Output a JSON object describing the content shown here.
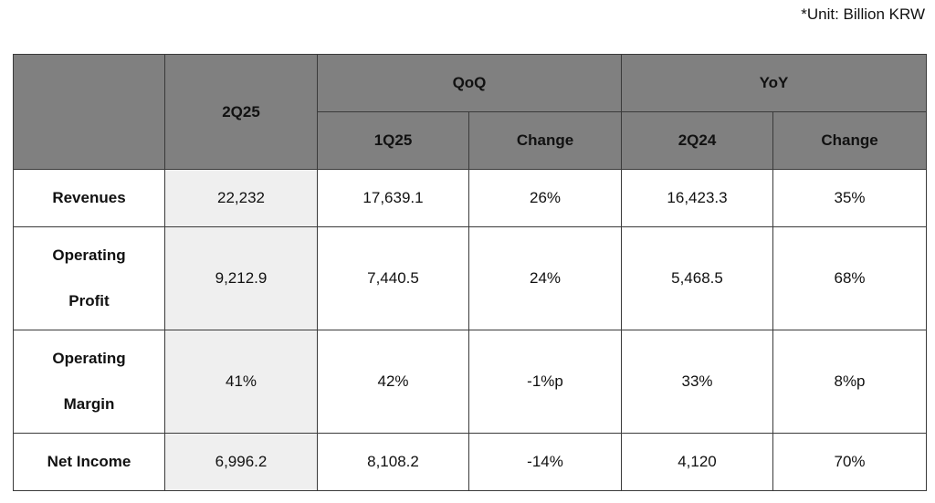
{
  "unit_note": "*Unit: Billion KRW",
  "header": {
    "current": "2Q25",
    "qoq": "QoQ",
    "yoy": "YoY",
    "qoq_period": "1Q25",
    "qoq_change": "Change",
    "yoy_period": "2Q24",
    "yoy_change": "Change"
  },
  "rows": [
    {
      "label_line1": "Revenues",
      "label_line2": "",
      "current": "22,232",
      "qoq_value": "17,639.1",
      "qoq_change": "26%",
      "yoy_value": "16,423.3",
      "yoy_change": "35%"
    },
    {
      "label_line1": "Operating",
      "label_line2": "Profit",
      "current": "9,212.9",
      "qoq_value": "7,440.5",
      "qoq_change": "24%",
      "yoy_value": "5,468.5",
      "yoy_change": "68%"
    },
    {
      "label_line1": "Operating",
      "label_line2": "Margin",
      "current": "41%",
      "qoq_value": "42%",
      "qoq_change": "-1%p",
      "yoy_value": "33%",
      "yoy_change": "8%p"
    },
    {
      "label_line1": "Net Income",
      "label_line2": "",
      "current": "6,996.2",
      "qoq_value": "8,108.2",
      "qoq_change": "-14%",
      "yoy_value": "4,120",
      "yoy_change": "70%"
    }
  ]
}
